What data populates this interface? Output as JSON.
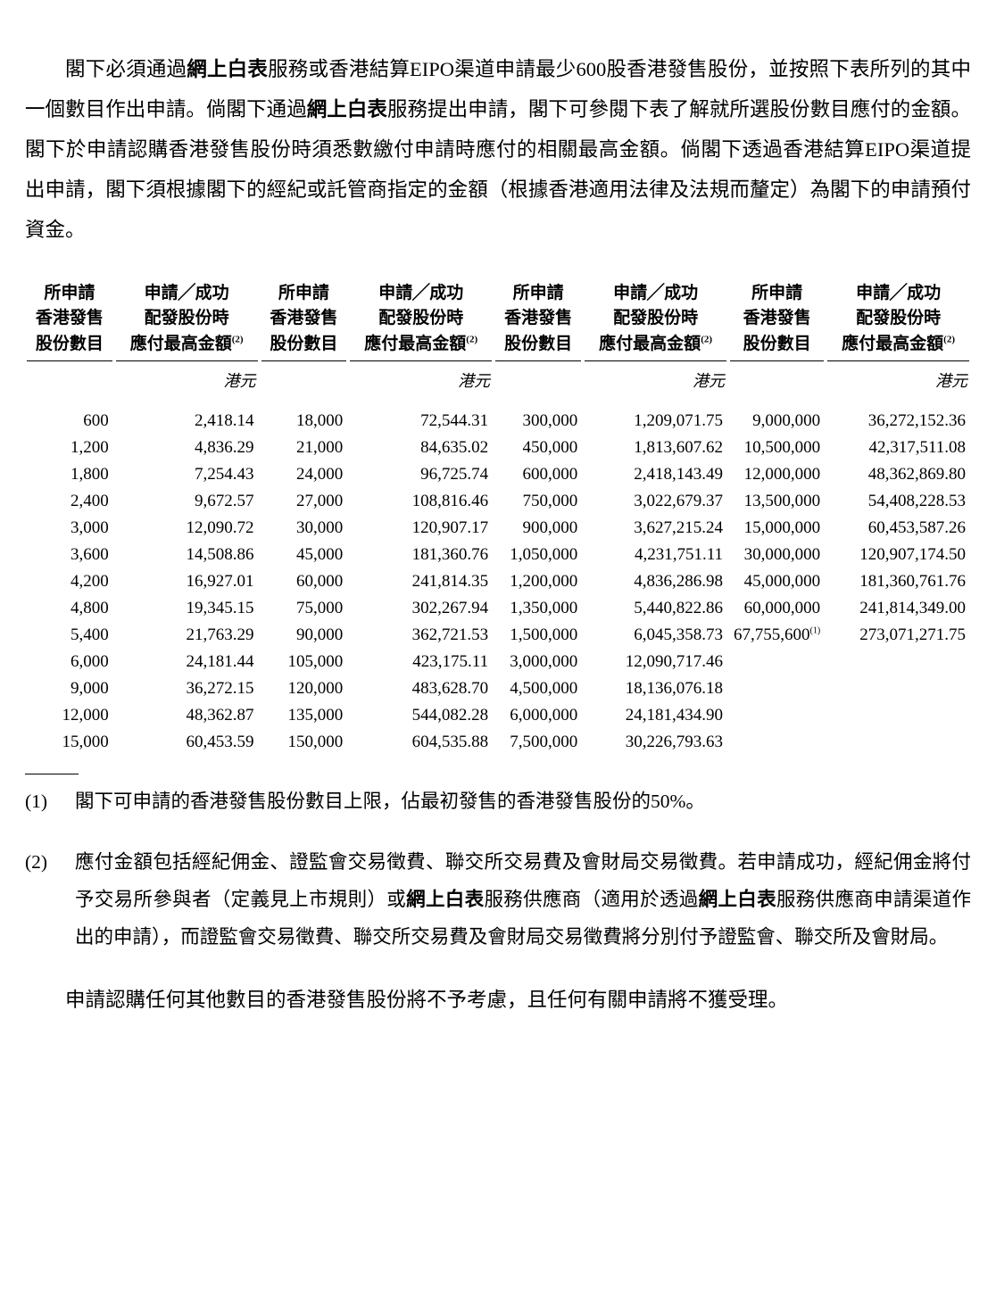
{
  "intro": {
    "seg1": "閣下必須通過",
    "bold1": "網上白表",
    "seg2": "服務或香港結算EIPO渠道申請最少600股香港發售股份，並按照下表所列的其中一個數目作出申請。倘閣下通過",
    "bold2": "網上白表",
    "seg3": "服務提出申請，閣下可參閱下表了解就所選股份數目應付的金額。閣下於申請認購香港發售股份時須悉數繳付申請時應付的相關最高金額。倘閣下透過香港結算EIPO渠道提出申請，閣下須根據閣下的經紀或託管商指定的金額（根據香港適用法律及法規而釐定）為閣下的申請預付資金。"
  },
  "table": {
    "header_shares_l1": "所申請",
    "header_shares_l2": "香港發售",
    "header_shares_l3": "股份數目",
    "header_amount_l1": "申請╱成功",
    "header_amount_l2": "配發股份時",
    "header_amount_l3": "應付最高金額",
    "header_sup": "(2)",
    "currency": "港元",
    "fontsize_header": 19,
    "fontsize_body": 19,
    "text_color": "#000000",
    "background": "#ffffff",
    "columns": [
      {
        "shares": [
          "600",
          "1,200",
          "1,800",
          "2,400",
          "3,000",
          "3,600",
          "4,200",
          "4,800",
          "5,400",
          "6,000",
          "9,000",
          "12,000",
          "15,000"
        ],
        "amounts": [
          "2,418.14",
          "4,836.29",
          "7,254.43",
          "9,672.57",
          "12,090.72",
          "14,508.86",
          "16,927.01",
          "19,345.15",
          "21,763.29",
          "24,181.44",
          "36,272.15",
          "48,362.87",
          "60,453.59"
        ]
      },
      {
        "shares": [
          "18,000",
          "21,000",
          "24,000",
          "27,000",
          "30,000",
          "45,000",
          "60,000",
          "75,000",
          "90,000",
          "105,000",
          "120,000",
          "135,000",
          "150,000"
        ],
        "amounts": [
          "72,544.31",
          "84,635.02",
          "96,725.74",
          "108,816.46",
          "120,907.17",
          "181,360.76",
          "241,814.35",
          "302,267.94",
          "362,721.53",
          "423,175.11",
          "483,628.70",
          "544,082.28",
          "604,535.88"
        ]
      },
      {
        "shares": [
          "300,000",
          "450,000",
          "600,000",
          "750,000",
          "900,000",
          "1,050,000",
          "1,200,000",
          "1,350,000",
          "1,500,000",
          "3,000,000",
          "4,500,000",
          "6,000,000",
          "7,500,000"
        ],
        "amounts": [
          "1,209,071.75",
          "1,813,607.62",
          "2,418,143.49",
          "3,022,679.37",
          "3,627,215.24",
          "4,231,751.11",
          "4,836,286.98",
          "5,440,822.86",
          "6,045,358.73",
          "12,090,717.46",
          "18,136,076.18",
          "24,181,434.90",
          "30,226,793.63"
        ]
      },
      {
        "shares": [
          "9,000,000",
          "10,500,000",
          "12,000,000",
          "13,500,000",
          "15,000,000",
          "30,000,000",
          "45,000,000",
          "60,000,000",
          "67,755,600"
        ],
        "share_sup": {
          "8": "(1)"
        },
        "amounts": [
          "36,272,152.36",
          "42,317,511.08",
          "48,362,869.80",
          "54,408,228.53",
          "60,453,587.26",
          "120,907,174.50",
          "181,360,761.76",
          "241,814,349.00",
          "273,071,271.75"
        ]
      }
    ]
  },
  "footnotes": {
    "n1_num": "(1)",
    "n1_text": "閣下可申請的香港發售股份數目上限，佔最初發售的香港發售股份的50%。",
    "n2_num": "(2)",
    "n2_seg1": "應付金額包括經紀佣金、證監會交易徵費、聯交所交易費及會財局交易徵費。若申請成功，經紀佣金將付予交易所參與者（定義見上市規則）或",
    "n2_bold1": "網上白表",
    "n2_seg2": "服務供應商（適用於透過",
    "n2_bold2": "網上白表",
    "n2_seg3": "服務供應商申請渠道作出的申請），而證監會交易徵費、聯交所交易費及會財局交易徵費將分別付予證監會、聯交所及會財局。"
  },
  "closing": "申請認購任何其他數目的香港發售股份將不予考慮，且任何有關申請將不獲受理。"
}
